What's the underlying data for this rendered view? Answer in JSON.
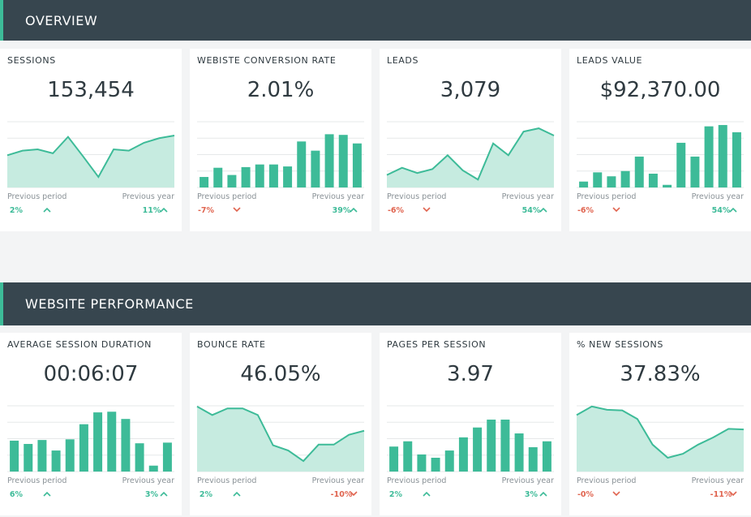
{
  "sections": [
    {
      "title": "OVERVIEW",
      "widgets": [
        {
          "title": "SESSIONS",
          "value": "153,454",
          "chart": {
            "type": "line",
            "values": [
              49,
              56,
              58,
              52,
              77,
              47,
              16,
              58,
              56,
              68,
              75,
              79
            ],
            "ylim": [
              0,
              100
            ],
            "color": "#3dbb98"
          },
          "previous_period": {
            "label": "Previous period",
            "change": "2%",
            "direction": "up"
          },
          "previous_year": {
            "label": "Previous year",
            "change": "11%",
            "direction": "up"
          }
        },
        {
          "title": "WEBISTE CONVERSION RATE",
          "value": "2.01%",
          "chart": {
            "type": "bar",
            "values": [
              16,
              30,
              19,
              31,
              35,
              35,
              32,
              70,
              56,
              81,
              80,
              67
            ],
            "ylim": [
              0,
              100
            ],
            "color": "#3dbb98"
          },
          "previous_period": {
            "label": "Previous period",
            "change": "-7%",
            "direction": "down"
          },
          "previous_year": {
            "label": "Previous year",
            "change": "39%",
            "direction": "up"
          }
        },
        {
          "title": "LEADS",
          "value": "3,079",
          "chart": {
            "type": "line",
            "values": [
              19,
              30,
              22,
              28,
              49,
              26,
              12,
              67,
              49,
              85,
              90,
              79
            ],
            "ylim": [
              0,
              100
            ],
            "color": "#3dbb98"
          },
          "previous_period": {
            "label": "Previous period",
            "change": "-6%",
            "direction": "down"
          },
          "previous_year": {
            "label": "Previous year",
            "change": "54%",
            "direction": "up"
          }
        },
        {
          "title": "LEADS VALUE",
          "value": "$92,370.00",
          "chart": {
            "type": "bar",
            "values": [
              9,
              23,
              17,
              25,
              47,
              21,
              4,
              68,
              47,
              93,
              95,
              84
            ],
            "ylim": [
              0,
              100
            ],
            "color": "#3dbb98"
          },
          "previous_period": {
            "label": "Previous period",
            "change": "-6%",
            "direction": "down"
          },
          "previous_year": {
            "label": "Previous year",
            "change": "54%",
            "direction": "up"
          }
        }
      ]
    },
    {
      "title": "WEBSITE PERFORMANCE",
      "widgets": [
        {
          "title": "AVERAGE SESSION DURATION",
          "value": "00:06:07",
          "chart": {
            "type": "bar",
            "values": [
              47,
              42,
              48,
              32,
              49,
              72,
              90,
              91,
              80,
              43,
              9,
              44
            ],
            "ylim": [
              0,
              100
            ],
            "color": "#3dbb98"
          },
          "previous_period": {
            "label": "Previous period",
            "change": "6%",
            "direction": "up"
          },
          "previous_year": {
            "label": "Previous year",
            "change": "3%",
            "direction": "up"
          }
        },
        {
          "title": "BOUNCE RATE",
          "value": "46.05%",
          "chart": {
            "type": "line",
            "values": [
              99,
              86,
              96,
              96,
              86,
              40,
              32,
              16,
              41,
              41,
              56,
              62
            ],
            "ylim": [
              0,
              100
            ],
            "color": "#3dbb98"
          },
          "previous_period": {
            "label": "Previous period",
            "change": "2%",
            "direction": "up"
          },
          "previous_year": {
            "label": "Previous year",
            "change": "-10%",
            "direction": "down"
          }
        },
        {
          "title": "PAGES PER SESSION",
          "value": "3.97",
          "chart": {
            "type": "bar",
            "values": [
              38,
              46,
              26,
              21,
              32,
              52,
              67,
              79,
              79,
              58,
              37,
              46
            ],
            "ylim": [
              0,
              100
            ],
            "color": "#3dbb98"
          },
          "previous_period": {
            "label": "Previous period",
            "change": "2%",
            "direction": "up"
          },
          "previous_year": {
            "label": "Previous year",
            "change": "3%",
            "direction": "up"
          }
        },
        {
          "title": "% NEW SESSIONS",
          "value": "37.83%",
          "chart": {
            "type": "line",
            "values": [
              86,
              99,
              94,
              93,
              80,
              41,
              21,
              27,
              41,
              52,
              65,
              64
            ],
            "ylim": [
              0,
              100
            ],
            "color": "#3dbb98"
          },
          "previous_period": {
            "label": "Previous period",
            "change": "-0%",
            "direction": "down"
          },
          "previous_year": {
            "label": "Previous year",
            "change": "-11%",
            "direction": "down"
          }
        }
      ]
    }
  ]
}
